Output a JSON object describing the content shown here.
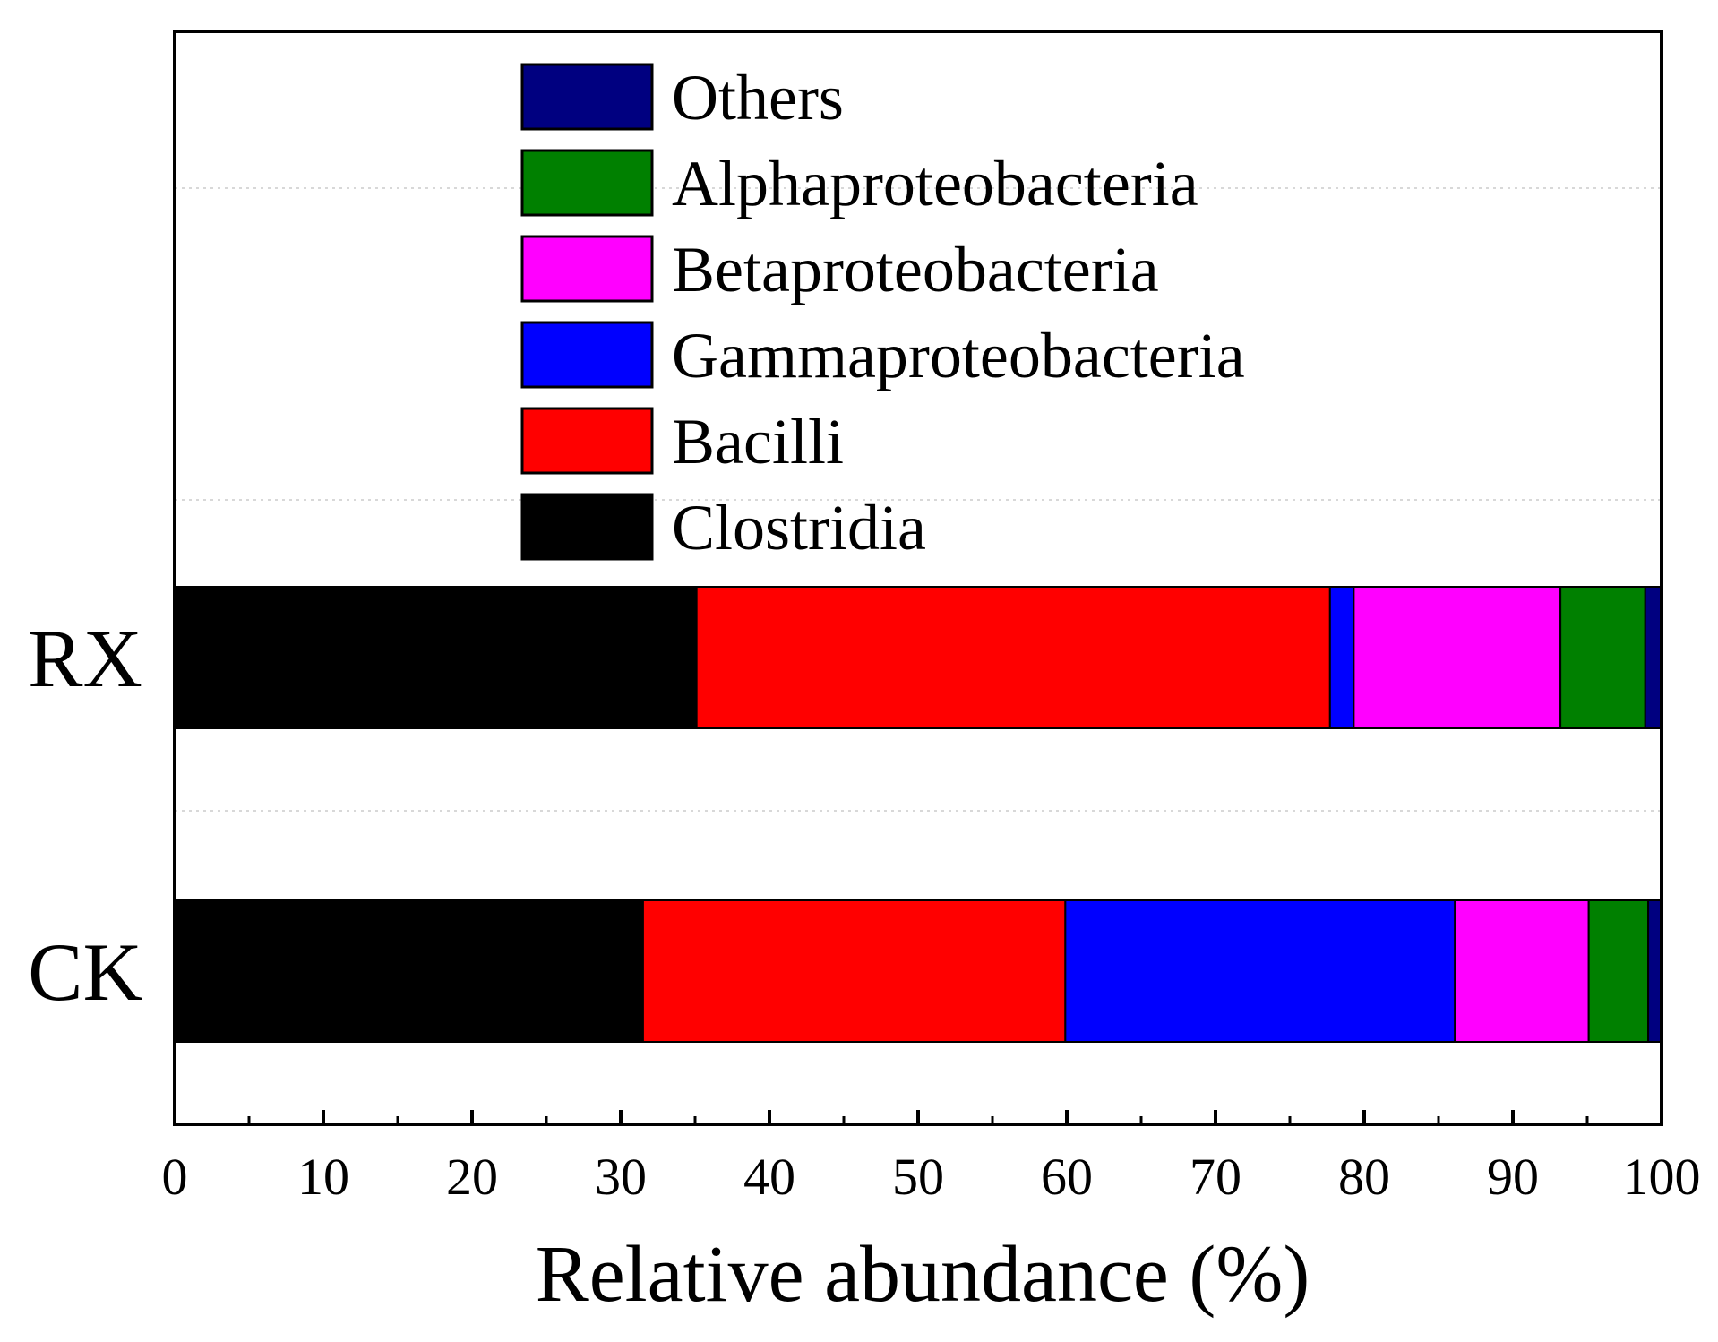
{
  "chart_data": {
    "type": "bar",
    "orientation": "horizontal",
    "stacked": true,
    "title": "",
    "xlabel": "Relative abundance (%)",
    "ylabel": "",
    "xlim": [
      0,
      100
    ],
    "xticks": [
      0,
      10,
      20,
      30,
      40,
      50,
      60,
      70,
      80,
      90,
      100
    ],
    "categories": [
      "RX",
      "CK"
    ],
    "legend_position": "top-center, inside plot",
    "grid": "light dotted horizontal lines",
    "series": [
      {
        "name": "Clostridia",
        "color": "#000000",
        "values": [
          35.1,
          31.5
        ]
      },
      {
        "name": "Bacilli",
        "color": "#ff0000",
        "values": [
          42.6,
          28.4
        ]
      },
      {
        "name": "Gammaproteobacteria",
        "color": "#0000ff",
        "values": [
          1.6,
          26.2
        ]
      },
      {
        "name": "Betaproteobacteria",
        "color": "#ff00ff",
        "values": [
          13.9,
          9.0
        ]
      },
      {
        "name": "Alphaproteobacteria",
        "color": "#008000",
        "values": [
          5.7,
          4.0
        ]
      },
      {
        "name": "Others",
        "color": "#000080",
        "values": [
          1.1,
          0.9
        ]
      }
    ],
    "legend_order": [
      "Others",
      "Alphaproteobacteria",
      "Betaproteobacteria",
      "Gammaproteobacteria",
      "Bacilli",
      "Clostridia"
    ]
  }
}
